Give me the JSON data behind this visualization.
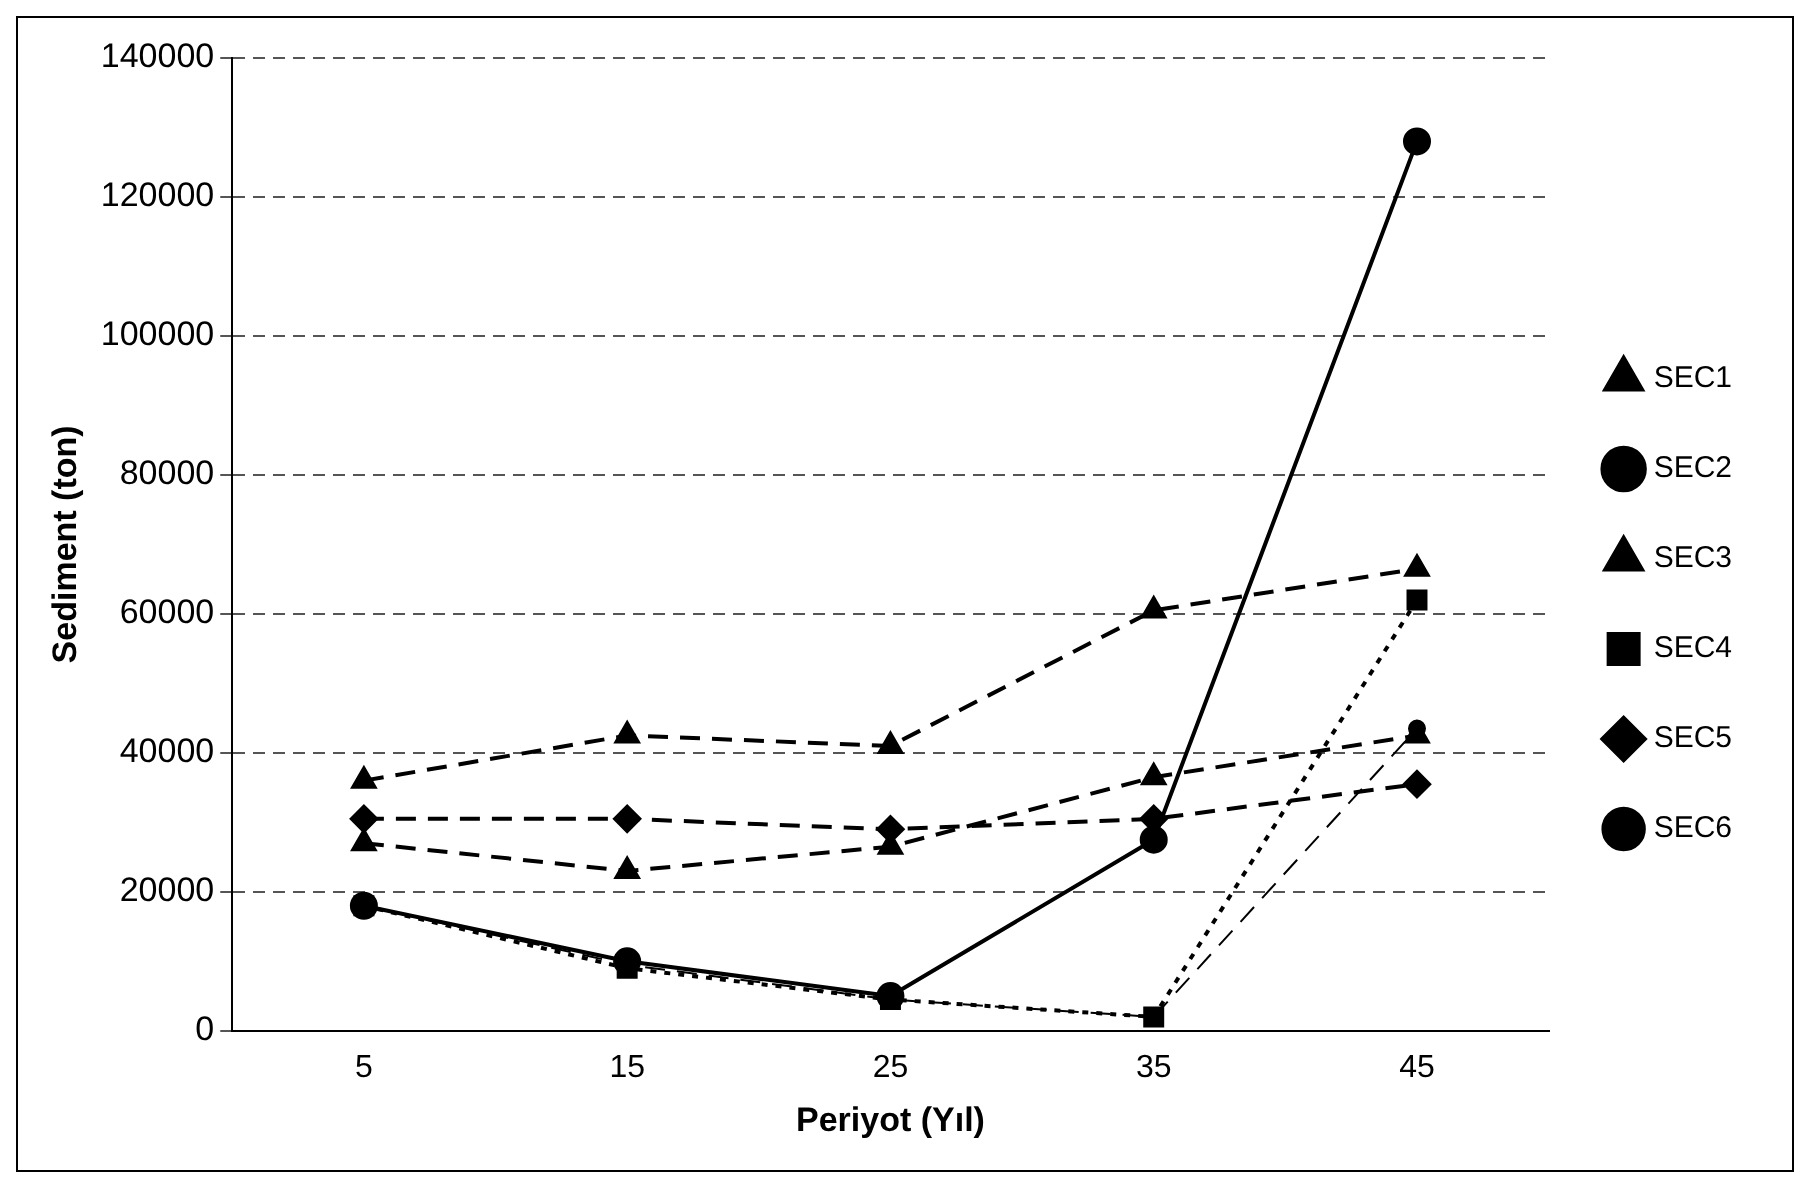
{
  "chart_data": {
    "type": "line",
    "xlabel": "Periyot (Yıl)",
    "ylabel": "Sediment (ton)",
    "categories": [
      "5",
      "15",
      "25",
      "35",
      "45"
    ],
    "ylim": [
      0,
      140000
    ],
    "yticks": [
      0,
      20000,
      40000,
      60000,
      80000,
      100000,
      120000,
      140000
    ],
    "grid": "y",
    "legend": "right",
    "series": [
      {
        "name": "SEC1",
        "color": "#000000",
        "marker": "triangle",
        "line_style": "dashed",
        "values": [
          36000,
          42500,
          41000,
          60500,
          66500
        ]
      },
      {
        "name": "SEC2",
        "color": "#000000",
        "marker": "circle",
        "line_style": "solid",
        "values": [
          18000,
          10000,
          5000,
          27500,
          128000
        ]
      },
      {
        "name": "SEC3",
        "color": "#000000",
        "marker": "triangle",
        "line_style": "dashed",
        "values": [
          27000,
          23000,
          26500,
          36500,
          42500
        ]
      },
      {
        "name": "SEC4",
        "color": "#000000",
        "marker": "square",
        "line_style": "dotted",
        "values": [
          18000,
          9000,
          4500,
          2000,
          62000
        ]
      },
      {
        "name": "SEC5",
        "color": "#000000",
        "marker": "diamond",
        "line_style": "dashed",
        "values": [
          30500,
          30500,
          29000,
          30500,
          35500
        ]
      },
      {
        "name": "SEC6",
        "color": "#000000",
        "marker": "circle",
        "line_style": "dashed",
        "values": [
          18000,
          9500,
          4500,
          2000,
          43500
        ]
      }
    ]
  }
}
